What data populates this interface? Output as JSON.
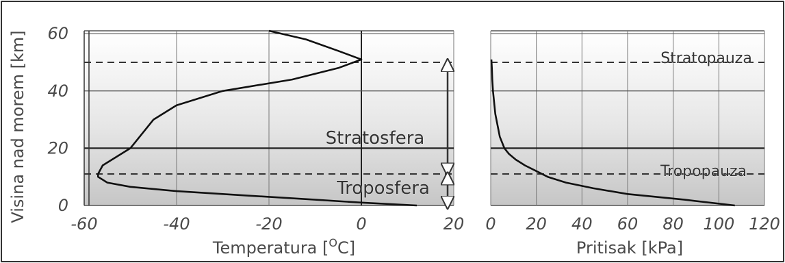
{
  "ylabel": "Visina nad morem [km]",
  "chart_data": [
    {
      "type": "line",
      "xlabel_main": "Temperatura [",
      "xlabel_sup": "O",
      "xlabel_end": "C]",
      "ylabel": "Visina nad morem [km]",
      "xlim": [
        -65,
        20
      ],
      "ylim": [
        0,
        62
      ],
      "xticks": [
        -60,
        -40,
        -20,
        0,
        20
      ],
      "yticks": [
        0,
        20,
        40,
        60
      ],
      "grid": true,
      "series": [
        {
          "x": [
            12,
            0,
            -10,
            -25,
            -40,
            -50,
            -55,
            -57,
            -57,
            -56,
            -50,
            -45,
            -40,
            -30,
            -15,
            -5,
            0,
            -5,
            -12,
            -20
          ],
          "y": [
            0,
            1,
            2,
            3.5,
            5,
            6.5,
            8,
            10,
            11,
            14,
            20,
            30,
            35,
            40,
            44,
            48,
            51,
            54,
            58,
            61
          ]
        }
      ],
      "annotations": [
        "Stratosfera",
        "Troposfera"
      ]
    },
    {
      "type": "line",
      "xlabel": "Pritisak [kPa]",
      "xlim": [
        0,
        120
      ],
      "ylim": [
        0,
        62
      ],
      "xticks": [
        0,
        20,
        40,
        60,
        80,
        100,
        120
      ],
      "grid": true,
      "series": [
        {
          "x": [
            107,
            85,
            60,
            45,
            33,
            25,
            20,
            15,
            11,
            8,
            6,
            4,
            3,
            2,
            1.5,
            1,
            0.7,
            0.5,
            0.3
          ],
          "y": [
            0,
            2,
            4,
            6,
            8,
            10,
            12,
            14,
            16,
            18,
            20,
            24,
            28,
            32,
            36,
            40,
            44,
            48,
            51
          ]
        }
      ],
      "annotations": [
        "Stratopauza",
        "Tropopauza"
      ]
    }
  ]
}
